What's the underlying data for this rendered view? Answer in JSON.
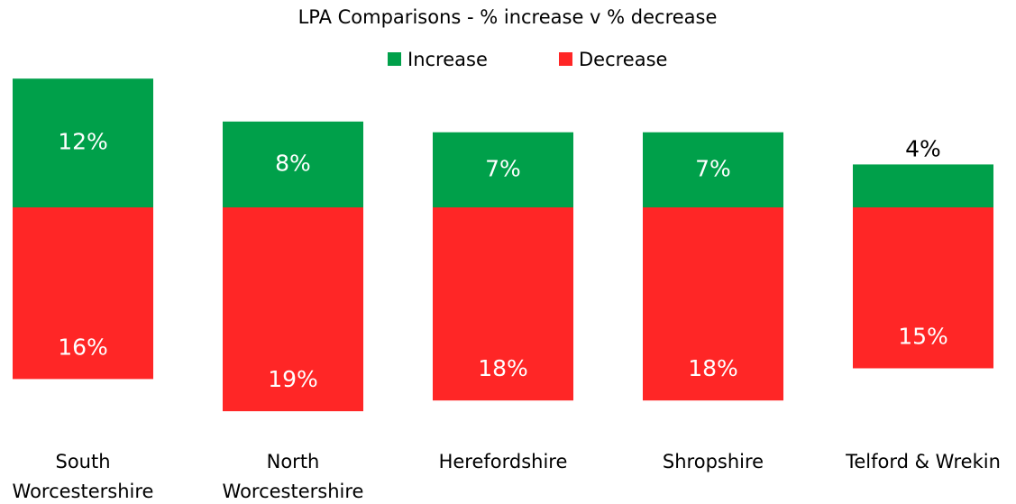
{
  "chart_data": {
    "type": "diverging_bar",
    "title": "LPA Comparisons - % increase v % decrease",
    "categories": [
      "South Worcestershire",
      "North Worcestershire",
      "Herefordshire",
      "Shropshire",
      "Telford & Wrekin"
    ],
    "series": [
      {
        "name": "Increase",
        "color": "#00a04a",
        "values": [
          12,
          8,
          7,
          7,
          4
        ],
        "value_labels": [
          "12%",
          "8%",
          "7%",
          "7%",
          "4%"
        ]
      },
      {
        "name": "Decrease",
        "color": "#ff2626",
        "values": [
          16,
          19,
          18,
          18,
          15
        ],
        "value_labels": [
          "16%",
          "19%",
          "18%",
          "18%",
          "15%"
        ]
      }
    ],
    "legend": "top"
  }
}
